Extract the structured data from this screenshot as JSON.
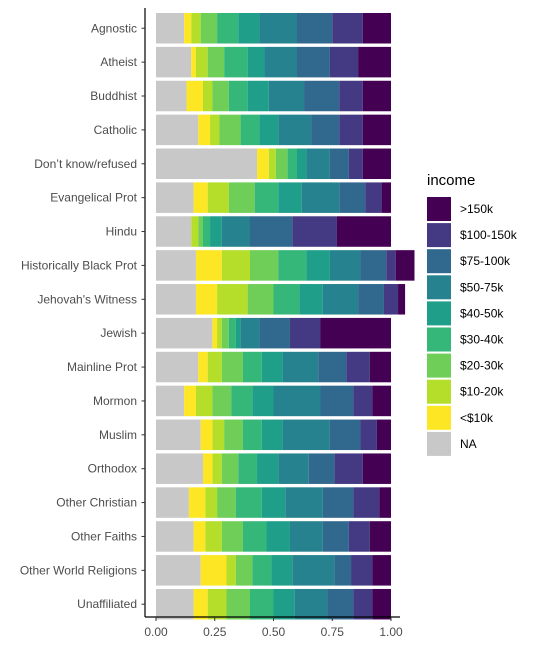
{
  "chart_data": {
    "type": "bar",
    "orientation": "horizontal",
    "stacked": "fill",
    "xlabel": "",
    "ylabel": "",
    "xlim": [
      0,
      1
    ],
    "x_ticks": [
      0,
      0.25,
      0.5,
      0.75,
      1
    ],
    "x_tick_labels": [
      "0.00",
      "0.25",
      "0.50",
      "0.75",
      "1.00"
    ],
    "grid": false,
    "legend_title": "income",
    "legend_position": "right",
    "categories": [
      "Agnostic",
      "Atheist",
      "Buddhist",
      "Catholic",
      "Don’t know/refused",
      "Evangelical Prot",
      "Hindu",
      "Historically Black Prot",
      "Jehovah's Witness",
      "Jewish",
      "Mainline Prot",
      "Mormon",
      "Muslim",
      "Orthodox",
      "Other Christian",
      "Other Faiths",
      "Other World Religions",
      "Unaffiliated"
    ],
    "series": [
      {
        "name": "NA",
        "color": "#C8C8C8",
        "values": [
          0.12,
          0.15,
          0.13,
          0.18,
          0.43,
          0.16,
          0.15,
          0.17,
          0.17,
          0.24,
          0.18,
          0.12,
          0.19,
          0.2,
          0.14,
          0.16,
          0.19,
          0.16
        ]
      },
      {
        "name": "<$10k",
        "color": "#FDE725",
        "values": [
          0.03,
          0.02,
          0.07,
          0.05,
          0.05,
          0.06,
          0.0,
          0.11,
          0.09,
          0.02,
          0.04,
          0.05,
          0.05,
          0.04,
          0.07,
          0.05,
          0.11,
          0.06
        ]
      },
      {
        "name": "$10-20k",
        "color": "#B5DE2B",
        "values": [
          0.04,
          0.05,
          0.04,
          0.04,
          0.03,
          0.09,
          0.03,
          0.12,
          0.13,
          0.02,
          0.06,
          0.07,
          0.05,
          0.04,
          0.05,
          0.07,
          0.04,
          0.08
        ]
      },
      {
        "name": "$20-30k",
        "color": "#6ECE58",
        "values": [
          0.07,
          0.07,
          0.07,
          0.09,
          0.05,
          0.11,
          0.02,
          0.12,
          0.11,
          0.03,
          0.09,
          0.08,
          0.08,
          0.07,
          0.08,
          0.09,
          0.07,
          0.1
        ]
      },
      {
        "name": "$30-40k",
        "color": "#35B779",
        "values": [
          0.09,
          0.1,
          0.08,
          0.08,
          0.04,
          0.1,
          0.03,
          0.12,
          0.11,
          0.03,
          0.08,
          0.09,
          0.08,
          0.08,
          0.11,
          0.1,
          0.08,
          0.1
        ]
      },
      {
        "name": "$40-50k",
        "color": "#1F9E89",
        "values": [
          0.09,
          0.07,
          0.09,
          0.08,
          0.04,
          0.1,
          0.05,
          0.1,
          0.1,
          0.02,
          0.09,
          0.09,
          0.09,
          0.09,
          0.1,
          0.1,
          0.09,
          0.09
        ]
      },
      {
        "name": "$50-75k",
        "color": "#26828E",
        "values": [
          0.16,
          0.14,
          0.15,
          0.14,
          0.1,
          0.16,
          0.12,
          0.13,
          0.15,
          0.08,
          0.15,
          0.2,
          0.2,
          0.13,
          0.16,
          0.14,
          0.18,
          0.14
        ]
      },
      {
        "name": "$75-100k",
        "color": "#31688E",
        "values": [
          0.15,
          0.14,
          0.15,
          0.12,
          0.08,
          0.11,
          0.18,
          0.11,
          0.11,
          0.13,
          0.12,
          0.14,
          0.13,
          0.11,
          0.13,
          0.11,
          0.07,
          0.11
        ]
      },
      {
        "name": "$100-150k",
        "color": "#443983",
        "values": [
          0.13,
          0.12,
          0.1,
          0.1,
          0.06,
          0.07,
          0.19,
          0.04,
          0.06,
          0.13,
          0.1,
          0.08,
          0.07,
          0.12,
          0.11,
          0.09,
          0.09,
          0.08
        ]
      },
      {
        "name": ">150k",
        "color": "#440154",
        "values": [
          0.12,
          0.14,
          0.12,
          0.12,
          0.12,
          0.04,
          0.23,
          0.08,
          0.03,
          0.3,
          0.09,
          0.08,
          0.06,
          0.12,
          0.05,
          0.09,
          0.08,
          0.08
        ]
      }
    ],
    "legend_order": [
      ">150k",
      "$100-150k",
      "$75-100k",
      "$50-75k",
      "$40-50k",
      "$30-40k",
      "$20-30k",
      "$10-20k",
      "<$10k",
      "NA"
    ]
  }
}
